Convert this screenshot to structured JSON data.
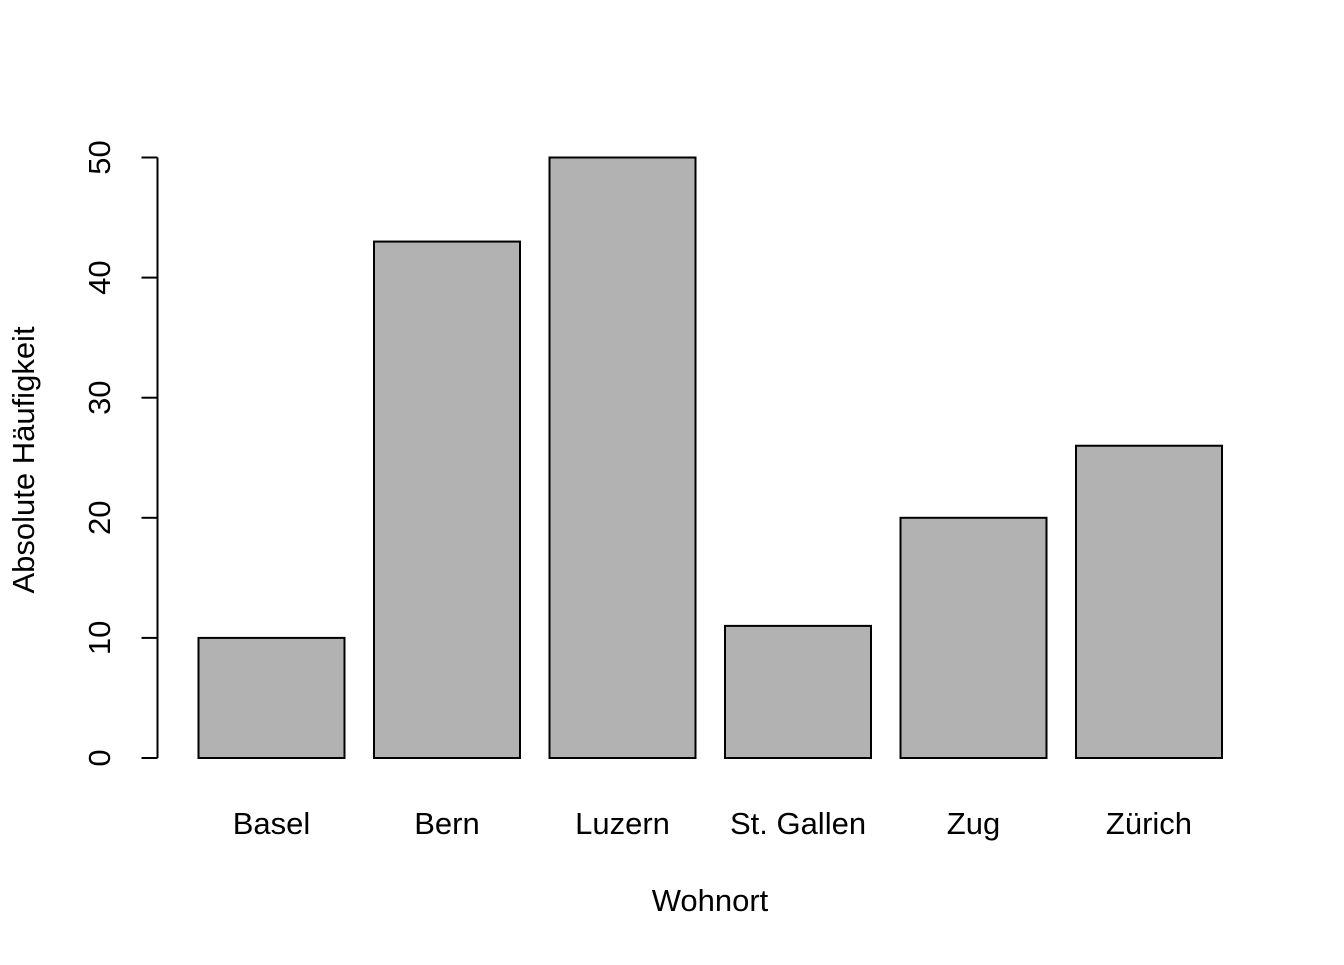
{
  "chart_data": {
    "type": "bar",
    "title": "",
    "xlabel": "Wohnort",
    "ylabel": "Absolute Häufigkeit",
    "categories": [
      "Basel",
      "Bern",
      "Luzern",
      "St. Gallen",
      "Zug",
      "Zürich"
    ],
    "values": [
      10,
      43,
      50,
      11,
      20,
      26
    ],
    "ylim": [
      0,
      50
    ],
    "yticks": [
      0,
      10,
      20,
      30,
      40,
      50
    ],
    "grid": false,
    "legend": "none",
    "colors": {
      "bar_fill": "#b2b2b2",
      "bar_stroke": "#000000",
      "axis": "#000000",
      "background": "#ffffff"
    }
  }
}
